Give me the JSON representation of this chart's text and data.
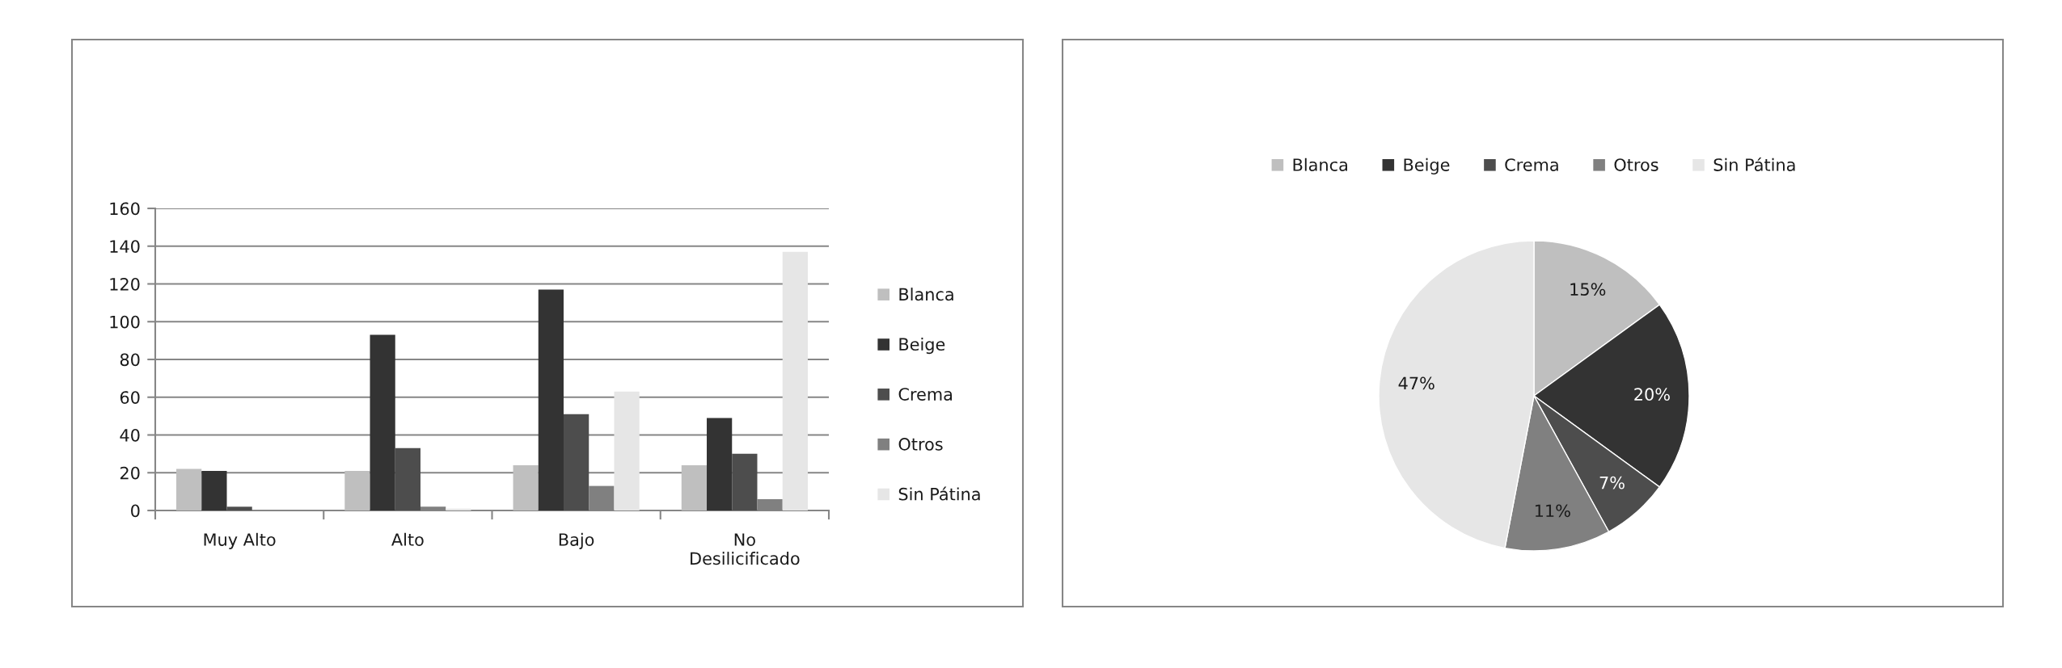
{
  "chart_data": [
    {
      "type": "bar",
      "categories": [
        "Muy Alto",
        "Alto",
        "Bajo",
        "No Desilicificado"
      ],
      "series": [
        {
          "name": "Blanca",
          "color": "#bfbfbf",
          "values": [
            22,
            21,
            24,
            24
          ]
        },
        {
          "name": "Beige",
          "color": "#333333",
          "values": [
            21,
            93,
            117,
            49
          ]
        },
        {
          "name": "Crema",
          "color": "#4d4d4d",
          "values": [
            2,
            33,
            51,
            30
          ]
        },
        {
          "name": "Otros",
          "color": "#808080",
          "values": [
            0,
            2,
            13,
            6
          ]
        },
        {
          "name": "Sin Pátina",
          "color": "#e6e6e6",
          "values": [
            0,
            1,
            63,
            137
          ]
        }
      ],
      "ylim": [
        0,
        160
      ],
      "yticks": [
        0,
        20,
        40,
        60,
        80,
        100,
        120,
        140,
        160
      ],
      "grid": "y",
      "legend": "right"
    },
    {
      "type": "pie",
      "categories": [
        "Blanca",
        "Beige",
        "Crema",
        "Otros",
        "Sin Pátina"
      ],
      "values": [
        15,
        20,
        7,
        11,
        47
      ],
      "colors": [
        "#bfbfbf",
        "#333333",
        "#4d4d4d",
        "#808080",
        "#e6e6e6"
      ],
      "value_labels": [
        "15%",
        "20%",
        "7%",
        "11%",
        "47%"
      ],
      "legend": "top"
    }
  ]
}
